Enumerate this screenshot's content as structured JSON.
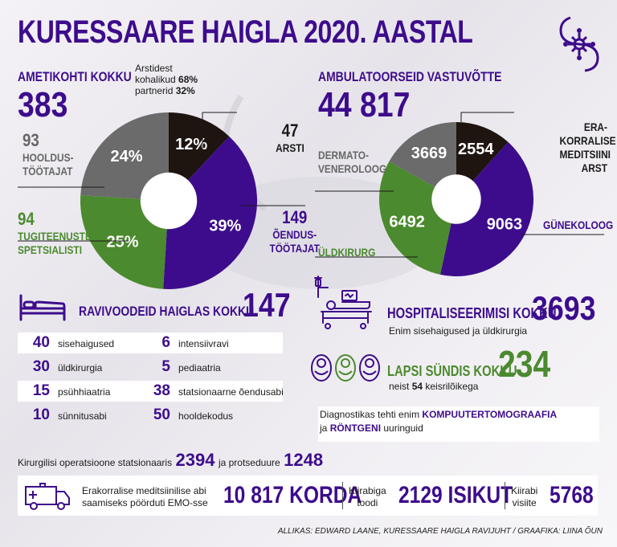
{
  "title": "KURESSAARE HAIGLA 2020. AASTAL",
  "positions": {
    "header": "AMETIKOHTI KOKKU",
    "total": "383",
    "note_line1": "Arstidest",
    "note_line2_text": "kohalikud ",
    "note_line2_value": "68%",
    "note_line3_text": "partnerid ",
    "note_line3_value": "32%",
    "categories": [
      {
        "count": "47",
        "label": "ARSTI",
        "percent": "12%",
        "value": 12,
        "color": "#1e1410"
      },
      {
        "count": "149",
        "label1": "ÕENDUS-",
        "label2": "TÖÖTAJAT",
        "percent": "39%",
        "value": 39,
        "color": "#3d0c8c"
      },
      {
        "count": "94",
        "label1": "TUGITEENUSTE",
        "label2": "SPETSIALISTI",
        "percent": "25%",
        "value": 25,
        "color": "#4b8a2e"
      },
      {
        "count": "93",
        "label1": "HOOLDUS-",
        "label2": "TÖÖTAJAT",
        "percent": "24%",
        "value": 24,
        "color": "#6b6b6b"
      }
    ]
  },
  "ambulatory": {
    "header": "AMBULATOORSEID VASTUVÕTTE",
    "total": "44 817",
    "slices": [
      {
        "label1": "ERA-",
        "label2": "KORRALISE",
        "label3": "MEDITSIINI",
        "label4": "ARST",
        "value": 2554,
        "display": "2554",
        "color": "#1e1410"
      },
      {
        "label": "GÜNEKOLOOG",
        "value": 9063,
        "display": "9063",
        "color": "#3d0c8c"
      },
      {
        "label": "ÜLDKIRURG",
        "value": 6492,
        "display": "6492",
        "color": "#4b8a2e"
      },
      {
        "label1": "DERMATO-",
        "label2": "VENEROLOOG",
        "value": 3669,
        "display": "3669",
        "color": "#6b6b6b"
      }
    ]
  },
  "beds": {
    "header": "RAVIVOODEID HAIGLAS KOKKU",
    "total": "147",
    "left": [
      {
        "n": "40",
        "name": "sisehaigused"
      },
      {
        "n": "30",
        "name": "üldkirurgia"
      },
      {
        "n": "15",
        "name": "psühhiaatria"
      },
      {
        "n": "10",
        "name": "sünnitusabi"
      }
    ],
    "right": [
      {
        "n": "6",
        "name": "intensiivravi"
      },
      {
        "n": "5",
        "name": "pediaatria"
      },
      {
        "n": "38",
        "name": "statsionaarne õendusabi"
      },
      {
        "n": "50",
        "name": "hooldekodus"
      }
    ]
  },
  "hospitalization": {
    "header": "HOSPITALISEERIMISI KOKKU",
    "total": "3693",
    "sub": "Enim sisehaigused ja üldkirurgia"
  },
  "births": {
    "header": "LAPSI SÜNDIS KOKKU",
    "total": "234",
    "sub_pre": "neist ",
    "sub_num": "54",
    "sub_post": " keisrilõikega"
  },
  "diagnostics": {
    "line1_pre": "Diagnostikas tehti enim ",
    "line1_hl": "KOMPUUTERTOMOGRAAFIA",
    "line2_pre": "ja ",
    "line2_hl": "RÖNTGENI",
    "line2_post": " uuringuid"
  },
  "operations": {
    "text1": "Kirurgilisi operatsioone statsionaaris",
    "num1": "2394",
    "text2": "ja protseduure",
    "num2": "1248"
  },
  "emergency": {
    "line1": "Erakorralise meditsiinilise abi",
    "line2": "saamiseks pöörduti EMO-sse",
    "count": "10 817 KORDA",
    "ambulance_l1": "Kiirabiga",
    "ambulance_l2": "toodi",
    "ambulance_count": "2129 ISIKUT",
    "visits_l1": "Kiirabi",
    "visits_l2": "visiite",
    "visits_count": "5768"
  },
  "source": "ALLIKAS: EDWARD LAANE, KURESSAARE HAIGLA RAVIJUHT / GRAAFIKA: LIINA ÕUN",
  "colors": {
    "purple": "#3d0c8c",
    "green": "#4b8a2e",
    "grey": "#6b6b6b",
    "black": "#1e1410"
  }
}
